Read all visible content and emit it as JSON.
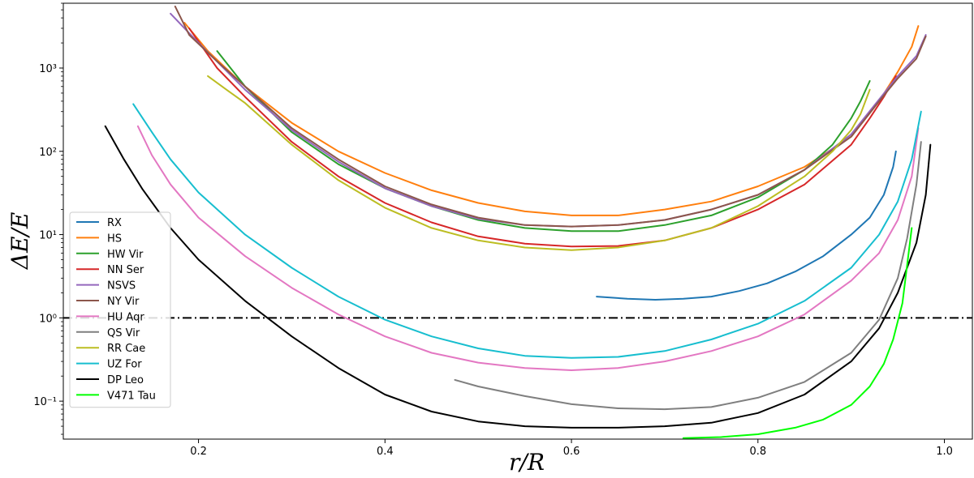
{
  "chart_data": {
    "type": "line",
    "title": "",
    "xlabel": "r/R",
    "ylabel": "ΔE/E",
    "xlim": [
      0.055,
      1.03
    ],
    "ylim": [
      0.035,
      6000
    ],
    "yscale": "log",
    "x_ticks": [
      {
        "value": 0.2,
        "label": "0.2"
      },
      {
        "value": 0.4,
        "label": "0.4"
      },
      {
        "value": 0.6,
        "label": "0.6"
      },
      {
        "value": 0.8,
        "label": "0.8"
      },
      {
        "value": 1.0,
        "label": "1.0"
      }
    ],
    "y_ticks": [
      {
        "value": 0.1,
        "label": "10⁻¹"
      },
      {
        "value": 1,
        "label": "10⁰"
      },
      {
        "value": 10,
        "label": "10¹"
      },
      {
        "value": 100,
        "label": "10²"
      },
      {
        "value": 1000,
        "label": "10³"
      }
    ],
    "reference_line": {
      "y": 1,
      "style": "dash-dot",
      "color": "#000000"
    },
    "legend_position": "lower-left",
    "grid": false,
    "series": [
      {
        "name": "RX",
        "color": "#1f77b4",
        "x": [
          0.627,
          0.66,
          0.69,
          0.72,
          0.75,
          0.78,
          0.81,
          0.84,
          0.87,
          0.9,
          0.92,
          0.935,
          0.945,
          0.948
        ],
        "y": [
          1.8,
          1.7,
          1.65,
          1.7,
          1.8,
          2.1,
          2.6,
          3.6,
          5.5,
          10,
          16,
          30,
          65,
          100
        ]
      },
      {
        "name": "HS",
        "color": "#ff7f0e",
        "x": [
          0.185,
          0.21,
          0.25,
          0.3,
          0.35,
          0.4,
          0.45,
          0.5,
          0.55,
          0.6,
          0.65,
          0.7,
          0.75,
          0.8,
          0.85,
          0.9,
          0.93,
          0.95,
          0.965,
          0.972
        ],
        "y": [
          3500,
          1600,
          600,
          220,
          100,
          55,
          34,
          24,
          19,
          17,
          17,
          20,
          25,
          38,
          65,
          150,
          400,
          900,
          1800,
          3200
        ]
      },
      {
        "name": "HW Vir",
        "color": "#2ca02c",
        "x": [
          0.22,
          0.25,
          0.3,
          0.35,
          0.4,
          0.45,
          0.5,
          0.55,
          0.6,
          0.65,
          0.7,
          0.75,
          0.8,
          0.85,
          0.88,
          0.9,
          0.91,
          0.92
        ],
        "y": [
          1600,
          600,
          170,
          70,
          36,
          22,
          15,
          12,
          11,
          11,
          13,
          17,
          28,
          60,
          120,
          250,
          400,
          700
        ]
      },
      {
        "name": "NN Ser",
        "color": "#d62728",
        "x": [
          0.19,
          0.22,
          0.25,
          0.3,
          0.35,
          0.4,
          0.45,
          0.5,
          0.55,
          0.6,
          0.65,
          0.7,
          0.75,
          0.8,
          0.85,
          0.9,
          0.92,
          0.935,
          0.948
        ],
        "y": [
          3000,
          1000,
          450,
          130,
          50,
          24,
          14,
          9.5,
          7.8,
          7.2,
          7.3,
          8.5,
          12,
          20,
          40,
          120,
          250,
          450,
          800
        ]
      },
      {
        "name": "NSVS",
        "color": "#9467bd",
        "x": [
          0.17,
          0.2,
          0.25,
          0.3,
          0.35,
          0.4,
          0.45,
          0.5,
          0.55,
          0.6,
          0.65,
          0.7,
          0.75,
          0.8,
          0.85,
          0.9,
          0.93,
          0.95,
          0.97,
          0.98
        ],
        "y": [
          4500,
          2000,
          550,
          180,
          75,
          36,
          22,
          15.5,
          13,
          12.5,
          13,
          15,
          20,
          30,
          60,
          160,
          420,
          800,
          1400,
          2500
        ]
      },
      {
        "name": "NY Vir",
        "color": "#8c564b",
        "x": [
          0.175,
          0.19,
          0.22,
          0.25,
          0.3,
          0.35,
          0.4,
          0.45,
          0.5,
          0.55,
          0.6,
          0.65,
          0.7,
          0.75,
          0.8,
          0.85,
          0.9,
          0.93,
          0.95,
          0.97,
          0.98
        ],
        "y": [
          5500,
          2500,
          1200,
          600,
          190,
          80,
          38,
          23,
          16,
          13,
          12.5,
          13,
          15,
          20,
          30,
          60,
          150,
          400,
          750,
          1300,
          2400
        ]
      },
      {
        "name": "HU Aqr",
        "color": "#e377c2",
        "x": [
          0.135,
          0.15,
          0.17,
          0.2,
          0.25,
          0.3,
          0.35,
          0.4,
          0.45,
          0.5,
          0.55,
          0.6,
          0.65,
          0.7,
          0.75,
          0.8,
          0.85,
          0.9,
          0.93,
          0.95,
          0.965,
          0.972
        ],
        "y": [
          200,
          90,
          40,
          16,
          5.5,
          2.3,
          1.1,
          0.6,
          0.38,
          0.29,
          0.25,
          0.235,
          0.25,
          0.3,
          0.4,
          0.6,
          1.1,
          2.8,
          6,
          15,
          50,
          190
        ]
      },
      {
        "name": "QS Vir",
        "color": "#7f7f7f",
        "x": [
          0.475,
          0.5,
          0.55,
          0.6,
          0.65,
          0.7,
          0.75,
          0.8,
          0.85,
          0.9,
          0.93,
          0.95,
          0.96,
          0.97,
          0.975
        ],
        "y": [
          0.18,
          0.15,
          0.115,
          0.092,
          0.082,
          0.08,
          0.085,
          0.11,
          0.17,
          0.38,
          0.95,
          3,
          9,
          40,
          130
        ]
      },
      {
        "name": "RR Cae",
        "color": "#bcbd22",
        "x": [
          0.21,
          0.23,
          0.25,
          0.3,
          0.35,
          0.4,
          0.45,
          0.5,
          0.55,
          0.6,
          0.65,
          0.7,
          0.75,
          0.8,
          0.85,
          0.88,
          0.9,
          0.91,
          0.92
        ],
        "y": [
          800,
          550,
          380,
          120,
          45,
          21,
          12,
          8.5,
          7,
          6.5,
          7,
          8.5,
          12,
          22,
          50,
          100,
          180,
          280,
          550
        ]
      },
      {
        "name": "UZ For",
        "color": "#17becf",
        "x": [
          0.13,
          0.15,
          0.17,
          0.2,
          0.25,
          0.3,
          0.35,
          0.4,
          0.45,
          0.5,
          0.55,
          0.6,
          0.65,
          0.7,
          0.75,
          0.8,
          0.85,
          0.9,
          0.93,
          0.95,
          0.965,
          0.975
        ],
        "y": [
          370,
          170,
          80,
          32,
          10,
          4,
          1.8,
          0.95,
          0.6,
          0.43,
          0.35,
          0.33,
          0.34,
          0.4,
          0.55,
          0.85,
          1.6,
          4,
          10,
          25,
          80,
          300
        ]
      },
      {
        "name": "DP Leo",
        "color": "#000000",
        "x": [
          0.1,
          0.12,
          0.14,
          0.17,
          0.2,
          0.25,
          0.3,
          0.35,
          0.4,
          0.45,
          0.5,
          0.55,
          0.6,
          0.65,
          0.7,
          0.75,
          0.8,
          0.85,
          0.9,
          0.93,
          0.95,
          0.97,
          0.98,
          0.985
        ],
        "y": [
          200,
          80,
          35,
          12,
          5,
          1.6,
          0.6,
          0.25,
          0.12,
          0.075,
          0.057,
          0.05,
          0.048,
          0.048,
          0.05,
          0.055,
          0.072,
          0.12,
          0.3,
          0.75,
          2,
          8,
          30,
          120
        ]
      },
      {
        "name": "V471 Tau",
        "color": "#00ff00",
        "x": [
          0.72,
          0.76,
          0.8,
          0.84,
          0.87,
          0.9,
          0.92,
          0.935,
          0.945,
          0.955,
          0.965
        ],
        "y": [
          0.036,
          0.037,
          0.04,
          0.048,
          0.06,
          0.09,
          0.15,
          0.28,
          0.55,
          1.5,
          12
        ]
      }
    ]
  }
}
